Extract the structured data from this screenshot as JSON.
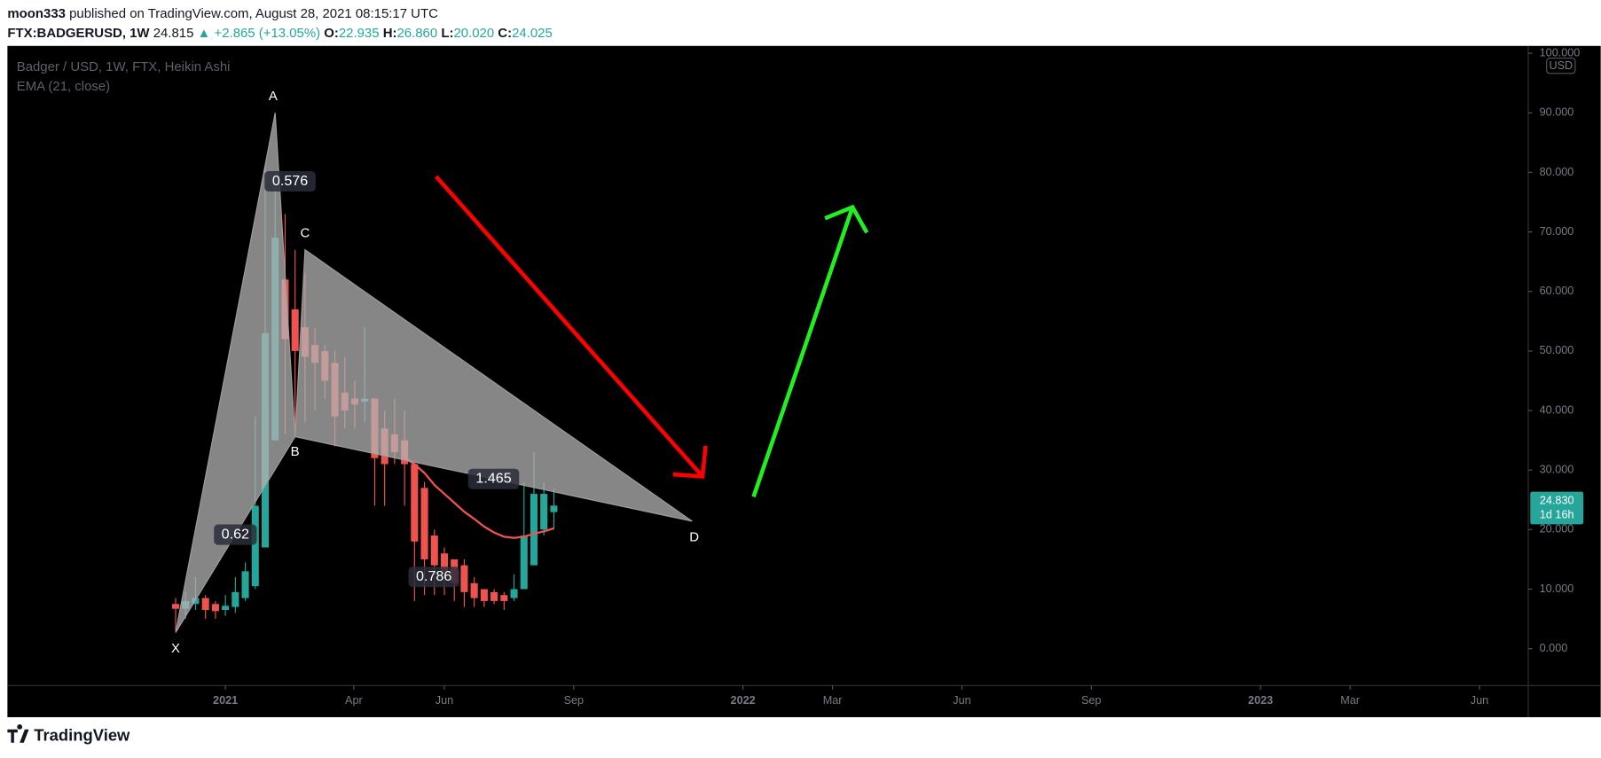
{
  "header": {
    "author": "moon333",
    "published": "published on TradingView.com, August 28, 2021 08:15:17 UTC",
    "symbol": "FTX:BADGERUSD, 1W",
    "last": "24.815",
    "change_arrow": "▲",
    "change": "+2.865 (+13.05%)",
    "ohlc": [
      {
        "key": "O:",
        "value": "22.935"
      },
      {
        "key": "H:",
        "value": "26.860"
      },
      {
        "key": "L:",
        "value": "20.020"
      },
      {
        "key": "C:",
        "value": "24.025"
      }
    ]
  },
  "chart_data": {
    "type": "candlestick",
    "title": "Badger / USD, 1W, FTX, Heikin Ashi",
    "currency": "USD",
    "up_color": "#26a69a",
    "down_color": "#ef5350",
    "x": [
      0,
      1,
      2,
      3,
      4,
      5,
      6,
      7,
      8,
      9,
      10,
      11,
      12,
      13,
      14,
      15,
      16,
      17,
      18,
      19,
      20,
      21,
      22,
      23,
      24,
      25,
      26,
      27,
      28,
      29,
      30,
      31,
      32,
      33,
      34,
      35,
      36,
      37,
      38
    ],
    "open": [
      7.5,
      6.7,
      7.5,
      8.5,
      7.5,
      6.5,
      7,
      8.5,
      10.5,
      17,
      35,
      62,
      57,
      54,
      51,
      50,
      48,
      43,
      42,
      41.5,
      42,
      37,
      36,
      35,
      31,
      27,
      19,
      16,
      15,
      14,
      11,
      10,
      9.5,
      9,
      8.5,
      10,
      14,
      20,
      22.935
    ],
    "high": [
      8.5,
      9.5,
      12,
      9,
      8,
      9,
      12,
      14.5,
      39,
      81,
      79,
      73,
      67,
      63,
      54,
      51,
      50,
      49,
      45,
      54,
      42,
      40,
      42,
      40,
      31,
      28,
      20,
      17,
      15,
      15,
      12,
      10,
      10,
      9.5,
      12.5,
      28,
      33,
      28,
      26.86
    ],
    "low": [
      3,
      5,
      6.5,
      5,
      5,
      5.5,
      6,
      8,
      10,
      17,
      35,
      36,
      36,
      38,
      40,
      42,
      34,
      37,
      37,
      38,
      24,
      24,
      31,
      24,
      8,
      9,
      9,
      9,
      8,
      7,
      7,
      7,
      7.5,
      6.5,
      8,
      10,
      14,
      19,
      20.02
    ],
    "close": [
      6.7,
      8,
      8.5,
      6.5,
      6.3,
      7.2,
      9.5,
      13,
      24,
      53,
      69,
      52,
      50,
      49,
      48,
      45,
      39,
      40,
      41,
      42,
      32,
      31,
      33,
      31,
      18,
      15,
      14,
      13,
      11,
      9.5,
      8.5,
      8,
      8,
      8,
      10,
      19,
      26,
      26,
      24.025
    ],
    "series": [
      {
        "name": "EMA (21, close)",
        "color": "#ef5350",
        "values": [
          null,
          null,
          null,
          null,
          null,
          null,
          null,
          null,
          null,
          null,
          null,
          null,
          null,
          null,
          null,
          null,
          null,
          null,
          null,
          null,
          null,
          null,
          null,
          32,
          31,
          29.5,
          27.5,
          26,
          24.5,
          23,
          21.8,
          20.5,
          19.5,
          18.8,
          18.6,
          18.8,
          19.3,
          19.7,
          20.2
        ]
      }
    ],
    "ylim": [
      -6.2,
      100.9
    ],
    "yticks": [
      {
        "value": 0,
        "label": "0.000"
      },
      {
        "value": 10,
        "label": "10.000"
      },
      {
        "value": 20,
        "label": "20.000"
      },
      {
        "value": 30,
        "label": "30.000"
      },
      {
        "value": 40,
        "label": "40.000"
      },
      {
        "value": 50,
        "label": "50.000"
      },
      {
        "value": 60,
        "label": "60.000"
      },
      {
        "value": 70,
        "label": "70.000"
      },
      {
        "value": 80,
        "label": "80.000"
      },
      {
        "value": 90,
        "label": "90.000"
      },
      {
        "value": 100,
        "label": "100.000"
      }
    ],
    "xlim": [
      -16.9,
      135.9
    ],
    "xticks": [
      {
        "value": 5,
        "label": "2021"
      },
      {
        "value": 17.9,
        "label": "Apr"
      },
      {
        "value": 27,
        "label": "Jun"
      },
      {
        "value": 40,
        "label": "Sep"
      },
      {
        "value": 57,
        "label": "2022"
      },
      {
        "value": 66,
        "label": "Mar"
      },
      {
        "value": 79,
        "label": "Jun"
      },
      {
        "value": 92,
        "label": "Sep"
      },
      {
        "value": 109,
        "label": "2023"
      },
      {
        "value": 118,
        "label": "Mar"
      },
      {
        "value": 131,
        "label": "Jun"
      }
    ],
    "grid": false,
    "last_price": {
      "value": 24.83,
      "label": "24.830"
    },
    "countdown": "1d 16h",
    "pattern": {
      "points": [
        {
          "label": "X",
          "x": 0,
          "y": 2.7
        },
        {
          "label": "A",
          "x": 10,
          "y": 90
        },
        {
          "label": "B",
          "x": 12,
          "y": 35.6
        },
        {
          "label": "C",
          "x": 13,
          "y": 67
        },
        {
          "label": "D",
          "x": 51.9,
          "y": 21.4
        }
      ],
      "ratios": [
        "0.576",
        "0.62",
        "0.786",
        "1.465"
      ]
    }
  },
  "footer": {
    "brand": "TradingView"
  }
}
